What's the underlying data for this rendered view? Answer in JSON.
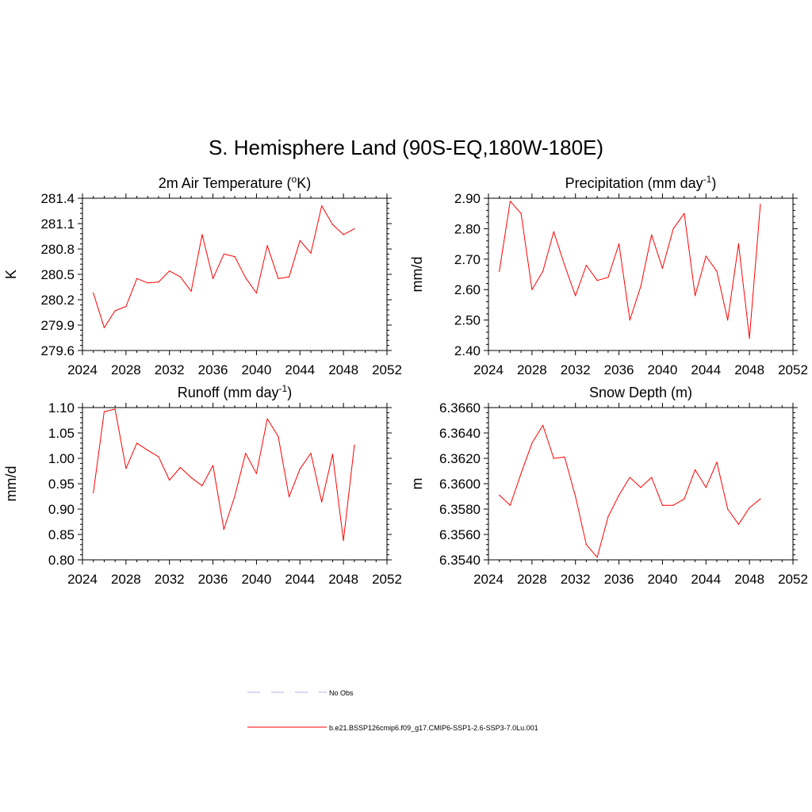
{
  "main_title": "S. Hemisphere Land (90S-EQ,180W-180E)",
  "colors": {
    "series": "#ff0000",
    "obs": "#b3b3e6",
    "axis": "#000000"
  },
  "legend": {
    "placement": "bottom-center",
    "items": [
      {
        "label": "No Obs",
        "style": "dashed",
        "color": "#b3b3e6"
      },
      {
        "label": "b.e21.BSSP126cmip6.f09_g17.CMIP6-SSP1-2.6-SSP3-7.0Lu.001",
        "style": "solid",
        "color": "#ff0000"
      }
    ]
  },
  "chart_data": [
    {
      "type": "line",
      "title_main": "2m Air Temperature (",
      "title_sup": "o",
      "title_rest": "K)",
      "ylabel": "K",
      "xlim": [
        2024,
        2052
      ],
      "ylim": [
        279.6,
        281.4
      ],
      "xticks": [
        "2024",
        "2028",
        "2032",
        "2036",
        "2040",
        "2044",
        "2048",
        "2052"
      ],
      "yticks": [
        "279.6",
        "279.9",
        "280.2",
        "280.5",
        "280.8",
        "281.1",
        "281.4"
      ],
      "x": [
        2025,
        2026,
        2027,
        2028,
        2029,
        2030,
        2031,
        2032,
        2033,
        2034,
        2035,
        2036,
        2037,
        2038,
        2039,
        2040,
        2041,
        2042,
        2043,
        2044,
        2045,
        2046,
        2047,
        2048,
        2049
      ],
      "series": [
        {
          "values": [
            280.28,
            279.87,
            280.07,
            280.12,
            280.45,
            280.4,
            280.41,
            280.54,
            280.47,
            280.3,
            280.97,
            280.45,
            280.74,
            280.71,
            280.46,
            280.28,
            280.84,
            280.45,
            280.47,
            280.9,
            280.75,
            281.31,
            281.09,
            280.97,
            281.04
          ]
        }
      ]
    },
    {
      "type": "line",
      "title_main": "Precipitation (mm day",
      "title_sup": "-1",
      "title_rest": ")",
      "ylabel": "mm/d",
      "xlim": [
        2024,
        2052
      ],
      "ylim": [
        2.4,
        2.9
      ],
      "xticks": [
        "2024",
        "2028",
        "2032",
        "2036",
        "2040",
        "2044",
        "2048",
        "2052"
      ],
      "yticks": [
        "2.40",
        "2.50",
        "2.60",
        "2.70",
        "2.80",
        "2.90"
      ],
      "x": [
        2025,
        2026,
        2027,
        2028,
        2029,
        2030,
        2031,
        2032,
        2033,
        2034,
        2035,
        2036,
        2037,
        2038,
        2039,
        2040,
        2041,
        2042,
        2043,
        2044,
        2045,
        2046,
        2047,
        2048,
        2049
      ],
      "series": [
        {
          "values": [
            2.66,
            2.89,
            2.85,
            2.6,
            2.66,
            2.79,
            2.68,
            2.58,
            2.68,
            2.63,
            2.64,
            2.75,
            2.5,
            2.61,
            2.78,
            2.67,
            2.8,
            2.85,
            2.58,
            2.71,
            2.66,
            2.5,
            2.75,
            2.44,
            2.88
          ]
        }
      ]
    },
    {
      "type": "line",
      "title_main": "Runoff (mm day",
      "title_sup": "-1",
      "title_rest": ")",
      "ylabel": "mm/d",
      "xlim": [
        2024,
        2052
      ],
      "ylim": [
        0.8,
        1.1
      ],
      "xticks": [
        "2024",
        "2028",
        "2032",
        "2036",
        "2040",
        "2044",
        "2048",
        "2052"
      ],
      "yticks": [
        "0.80",
        "0.85",
        "0.90",
        "0.95",
        "1.00",
        "1.05",
        "1.10"
      ],
      "x": [
        2025,
        2026,
        2027,
        2028,
        2029,
        2030,
        2031,
        2032,
        2033,
        2034,
        2035,
        2036,
        2037,
        2038,
        2039,
        2040,
        2041,
        2042,
        2043,
        2044,
        2045,
        2046,
        2047,
        2048,
        2049
      ],
      "series": [
        {
          "values": [
            0.932,
            1.092,
            1.097,
            0.98,
            1.03,
            1.016,
            1.003,
            0.957,
            0.982,
            0.962,
            0.946,
            0.986,
            0.86,
            0.925,
            1.01,
            0.97,
            1.078,
            1.043,
            0.924,
            0.979,
            1.01,
            0.914,
            1.008,
            0.838,
            1.026
          ]
        }
      ]
    },
    {
      "type": "line",
      "title_main": "Snow Depth (m)",
      "title_sup": "",
      "title_rest": "",
      "ylabel": "m",
      "xlim": [
        2024,
        2052
      ],
      "ylim": [
        6.354,
        6.366
      ],
      "xticks": [
        "2024",
        "2028",
        "2032",
        "2036",
        "2040",
        "2044",
        "2048",
        "2052"
      ],
      "yticks": [
        "6.3540",
        "6.3560",
        "6.3580",
        "6.3600",
        "6.3620",
        "6.3640",
        "6.3660"
      ],
      "x": [
        2025,
        2026,
        2027,
        2028,
        2029,
        2030,
        2031,
        2032,
        2033,
        2034,
        2035,
        2036,
        2037,
        2038,
        2039,
        2040,
        2041,
        2042,
        2043,
        2044,
        2045,
        2046,
        2047,
        2048,
        2049
      ],
      "series": [
        {
          "values": [
            6.3591,
            6.3583,
            6.3608,
            6.3632,
            6.3646,
            6.362,
            6.3621,
            6.359,
            6.3552,
            6.3542,
            6.3574,
            6.3591,
            6.3605,
            6.3597,
            6.3605,
            6.3583,
            6.3583,
            6.3588,
            6.3611,
            6.3597,
            6.3617,
            6.358,
            6.3568,
            6.3581,
            6.3588
          ]
        }
      ]
    }
  ]
}
